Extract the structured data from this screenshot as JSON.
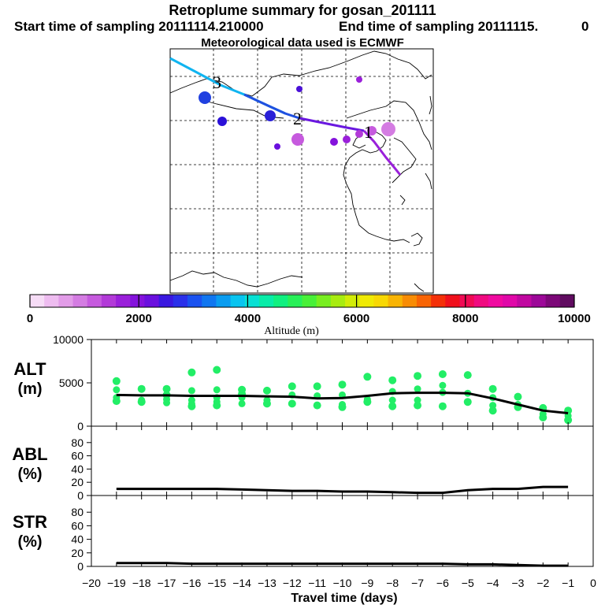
{
  "header": {
    "title": "Retroplume summary for gosan_201111",
    "start_label": "Start time of sampling 20111114.210000",
    "end_label": "End time of sampling 20111115.",
    "end_suffix": "0",
    "met_label": "Meteorological data used is ECMWF"
  },
  "colorbar": {
    "xlabel": "Altitude (m)",
    "tick_labels": [
      "0",
      "2000",
      "4000",
      "6000",
      "8000",
      "10000"
    ],
    "tick_values": [
      0,
      2000,
      4000,
      6000,
      8000,
      10000
    ],
    "colors": [
      "#f6dcf6",
      "#eebcf0",
      "#e29ce8",
      "#d47ce2",
      "#c65ade",
      "#b23ad8",
      "#9a20da",
      "#8412dc",
      "#6a10de",
      "#3a18e0",
      "#2a30ea",
      "#1a52f0",
      "#1076f0",
      "#0a9cf0",
      "#08c4f0",
      "#08e0d4",
      "#08eca8",
      "#10f080",
      "#28f058",
      "#48f038",
      "#78ee20",
      "#a8ec10",
      "#d2ec08",
      "#f0ea04",
      "#f8d804",
      "#f8b404",
      "#f88c04",
      "#f86404",
      "#f43008",
      "#f0101c",
      "#f00a54",
      "#f00a80",
      "#f00aa0",
      "#e008a8",
      "#c008a0",
      "#9c0898",
      "#7c0878",
      "#600c60"
    ]
  },
  "map": {
    "trajectory_labels": [
      {
        "text": "3",
        "type": "digit"
      },
      {
        "text": "2",
        "type": "digit"
      },
      {
        "text": "1",
        "type": "digit"
      }
    ]
  },
  "chart_data": [
    {
      "type": "scatter+line",
      "panel": "ALT",
      "ylabel_line1": "ALT",
      "ylabel_line2": "(m)",
      "ylim": [
        0,
        10000
      ],
      "y_tick_labels": [
        "10000",
        "5000",
        "0"
      ],
      "x": [
        -19,
        -18,
        -17,
        -16,
        -15,
        -14,
        -13,
        -12,
        -11,
        -10,
        -9,
        -8,
        -7,
        -6,
        -5,
        -4,
        -3,
        -2,
        -1
      ],
      "line": [
        3600,
        3550,
        3550,
        3500,
        3500,
        3500,
        3450,
        3400,
        3200,
        3250,
        3500,
        3800,
        3850,
        3850,
        3800,
        3200,
        2500,
        1800,
        1500
      ],
      "scatter": [
        {
          "x": -19,
          "y": [
            5200,
            4200,
            3300,
            2900
          ]
        },
        {
          "x": -18,
          "y": [
            4300,
            3000,
            2800
          ]
        },
        {
          "x": -17,
          "y": [
            4300,
            3100,
            2700,
            3600
          ]
        },
        {
          "x": -16,
          "y": [
            6200,
            4100,
            3000,
            2600,
            2300
          ]
        },
        {
          "x": -15,
          "y": [
            6500,
            4200,
            3300,
            2800,
            2400
          ]
        },
        {
          "x": -14,
          "y": [
            4200,
            3300,
            2600,
            3700
          ]
        },
        {
          "x": -13,
          "y": [
            4100,
            3000,
            2600
          ]
        },
        {
          "x": -12,
          "y": [
            4600,
            3600,
            2600
          ]
        },
        {
          "x": -11,
          "y": [
            4600,
            3500,
            2400
          ]
        },
        {
          "x": -10,
          "y": [
            4800,
            3600,
            2500,
            2200
          ]
        },
        {
          "x": -9,
          "y": [
            5700,
            3100,
            2800
          ]
        },
        {
          "x": -8,
          "y": [
            5300,
            4000,
            3000,
            2300
          ]
        },
        {
          "x": -7,
          "y": [
            5800,
            4300,
            3000,
            2400
          ]
        },
        {
          "x": -6,
          "y": [
            6000,
            4700,
            3900,
            2300
          ]
        },
        {
          "x": -5,
          "y": [
            5900,
            3800,
            2800
          ]
        },
        {
          "x": -4,
          "y": [
            4300,
            3300,
            2400,
            1800
          ]
        },
        {
          "x": -3,
          "y": [
            3400,
            2500,
            2200
          ]
        },
        {
          "x": -2,
          "y": [
            2100,
            1400,
            1000
          ]
        },
        {
          "x": -1,
          "y": [
            1800,
            1200,
            700
          ]
        }
      ]
    },
    {
      "type": "line",
      "panel": "ABL",
      "ylabel_line1": "ABL",
      "ylabel_line2": "(%)",
      "ylim": [
        0,
        100
      ],
      "y_tick_labels": [
        "80",
        "60",
        "40",
        "20",
        "0"
      ],
      "x": [
        -19,
        -18,
        -17,
        -16,
        -15,
        -14,
        -13,
        -12,
        -11,
        -10,
        -9,
        -8,
        -7,
        -6,
        -5,
        -4,
        -3,
        -2,
        -1
      ],
      "values": [
        10,
        10,
        10,
        10,
        10,
        9,
        8,
        7,
        7,
        6,
        6,
        5,
        4,
        4,
        8,
        10,
        10,
        13,
        13
      ]
    },
    {
      "type": "line",
      "panel": "STR",
      "ylabel_line1": "STR",
      "ylabel_line2": "(%)",
      "ylim": [
        0,
        100
      ],
      "y_tick_labels": [
        "80",
        "60",
        "40",
        "20",
        "0"
      ],
      "x": [
        -19,
        -18,
        -17,
        -16,
        -15,
        -14,
        -13,
        -12,
        -11,
        -10,
        -9,
        -8,
        -7,
        -6,
        -5,
        -4,
        -3,
        -2,
        -1
      ],
      "values": [
        5,
        5,
        5,
        4,
        4,
        4,
        4,
        4,
        4,
        4,
        4,
        4,
        4,
        4,
        3,
        3,
        2,
        1,
        1
      ]
    }
  ],
  "xaxis": {
    "tick_labels": [
      "−20",
      "−19",
      "−18",
      "−17",
      "−16",
      "−15",
      "−14",
      "−13",
      "−12",
      "−11",
      "−10",
      "−9",
      "−8",
      "−7",
      "−6",
      "−5",
      "−4",
      "−3",
      "−2",
      "−1",
      "0"
    ],
    "xlabel": "Travel time (days)",
    "xlim": [
      -20,
      0
    ]
  }
}
